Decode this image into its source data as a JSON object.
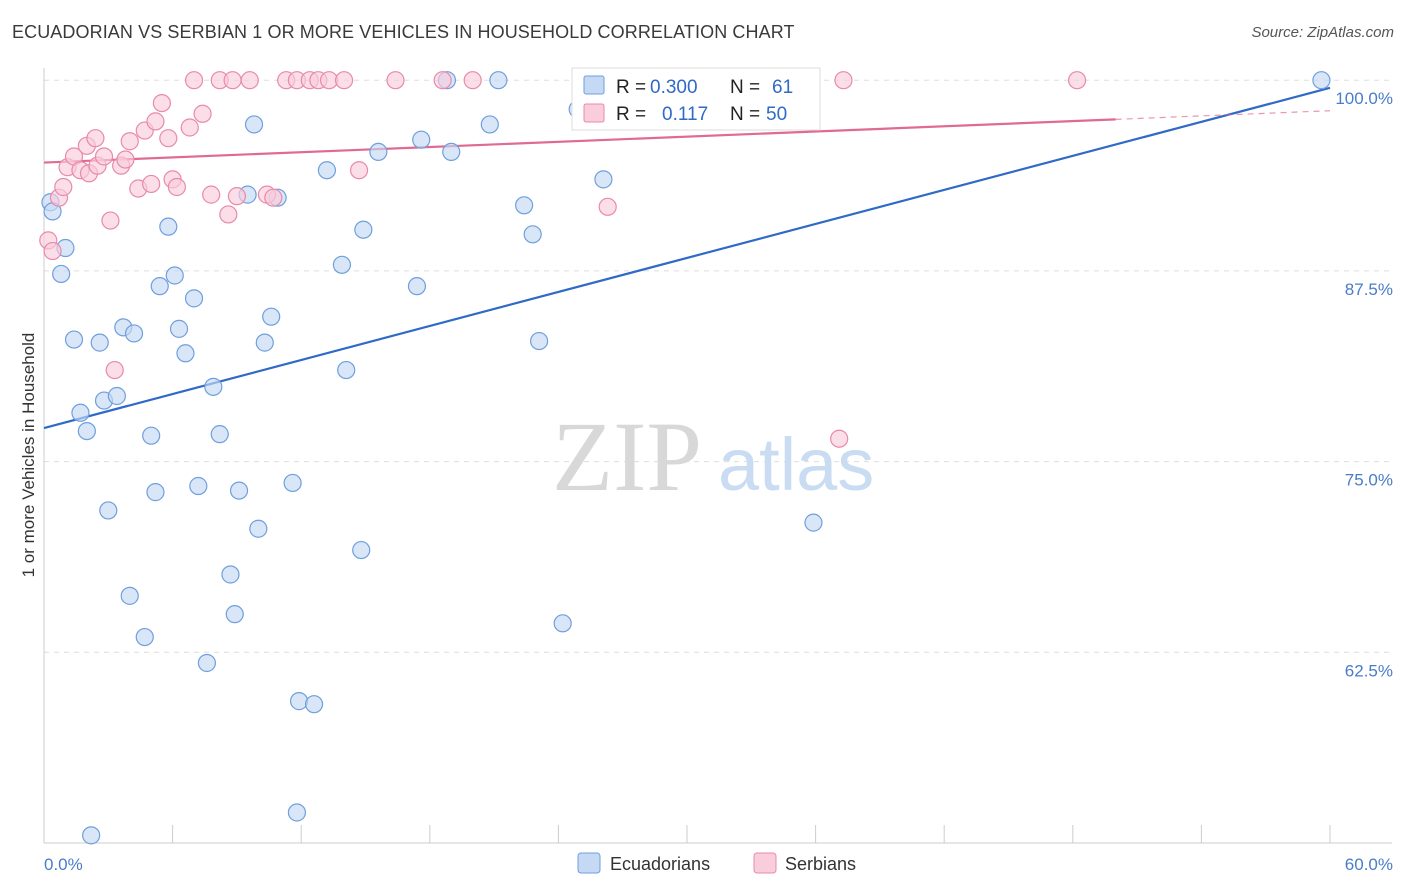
{
  "header": {
    "title": "ECUADORIAN VS SERBIAN 1 OR MORE VEHICLES IN HOUSEHOLD CORRELATION CHART",
    "source": "Source: ZipAtlas.com"
  },
  "watermark": {
    "zip": "ZIP",
    "atlas": "atlas"
  },
  "colors": {
    "blue_fill": "#c5d9f4",
    "blue_stroke": "#6f9fdc",
    "blue_line": "#2f6ac6",
    "pink_fill": "#f9cddc",
    "pink_stroke": "#e88aaa",
    "pink_line": "#e06a93",
    "grid": "#dddddd",
    "axis_text": "#4a7cc9"
  },
  "legend": {
    "rows": [
      {
        "r_label": "R =",
        "r_value": "0.300",
        "n_label": "N =",
        "n_value": "61",
        "series": "blue"
      },
      {
        "r_label": "R =",
        "r_value": "0.117",
        "n_label": "N =",
        "n_value": "50",
        "series": "pink"
      }
    ]
  },
  "bottom_legend": {
    "items": [
      {
        "label": "Ecuadorians",
        "series": "blue"
      },
      {
        "label": "Serbians",
        "series": "pink"
      }
    ]
  },
  "chart_data": {
    "type": "scatter",
    "title": "ECUADORIAN VS SERBIAN 1 OR MORE VEHICLES IN HOUSEHOLD CORRELATION CHART",
    "xlabel": "",
    "ylabel": "1 or more Vehicles in Household",
    "xlim": [
      0,
      60
    ],
    "ylim": [
      50,
      100.8
    ],
    "x_tick_labels": [
      {
        "value": 0,
        "label": "0.0%"
      },
      {
        "value": 60,
        "label": "60.0%"
      }
    ],
    "x_minor_ticks": [
      6,
      12,
      18,
      24,
      30,
      36,
      42,
      48,
      54,
      60
    ],
    "y_ticks": [
      {
        "value": 100,
        "label": "100.0%"
      },
      {
        "value": 87.5,
        "label": "87.5%"
      },
      {
        "value": 75,
        "label": "75.0%"
      },
      {
        "value": 62.5,
        "label": "62.5%"
      }
    ],
    "legend_position": "top-center",
    "series": [
      {
        "name": "Ecuadorians",
        "color_key": "blue",
        "trend": {
          "x0": 0,
          "y0": 77.2,
          "x1": 60,
          "y1": 99.5,
          "solid_to": 60
        },
        "points": [
          [
            0.3,
            92.0
          ],
          [
            0.4,
            91.4
          ],
          [
            1.0,
            89.0
          ],
          [
            0.8,
            87.3
          ],
          [
            1.4,
            83.0
          ],
          [
            1.7,
            78.2
          ],
          [
            2.0,
            77.0
          ],
          [
            2.6,
            82.8
          ],
          [
            2.8,
            79.0
          ],
          [
            3.4,
            79.3
          ],
          [
            3.0,
            71.8
          ],
          [
            3.7,
            83.8
          ],
          [
            4.2,
            83.4
          ],
          [
            4.0,
            66.2
          ],
          [
            4.7,
            63.5
          ],
          [
            5.0,
            76.7
          ],
          [
            5.2,
            73.0
          ],
          [
            5.4,
            86.5
          ],
          [
            5.8,
            90.4
          ],
          [
            6.1,
            87.2
          ],
          [
            6.3,
            83.7
          ],
          [
            6.6,
            82.1
          ],
          [
            7.0,
            85.7
          ],
          [
            7.2,
            73.4
          ],
          [
            7.6,
            61.8
          ],
          [
            7.9,
            79.9
          ],
          [
            8.2,
            76.8
          ],
          [
            8.7,
            67.6
          ],
          [
            8.9,
            65.0
          ],
          [
            9.1,
            73.1
          ],
          [
            9.5,
            92.5
          ],
          [
            9.8,
            97.1
          ],
          [
            10.0,
            70.6
          ],
          [
            10.3,
            82.8
          ],
          [
            10.6,
            84.5
          ],
          [
            10.9,
            92.3
          ],
          [
            11.6,
            73.6
          ],
          [
            11.8,
            52.0
          ],
          [
            11.9,
            59.3
          ],
          [
            12.6,
            59.1
          ],
          [
            13.2,
            94.1
          ],
          [
            13.9,
            87.9
          ],
          [
            14.1,
            81.0
          ],
          [
            14.8,
            69.2
          ],
          [
            14.9,
            90.2
          ],
          [
            15.6,
            95.3
          ],
          [
            17.4,
            86.5
          ],
          [
            17.6,
            96.1
          ],
          [
            18.8,
            100.0
          ],
          [
            19.0,
            95.3
          ],
          [
            20.8,
            97.1
          ],
          [
            21.2,
            100.0
          ],
          [
            22.4,
            91.8
          ],
          [
            22.8,
            89.9
          ],
          [
            23.1,
            82.9
          ],
          [
            24.2,
            64.4
          ],
          [
            24.9,
            98.1
          ],
          [
            26.1,
            93.5
          ],
          [
            35.9,
            71.0
          ],
          [
            59.6,
            100.0
          ],
          [
            2.2,
            50.5
          ]
        ]
      },
      {
        "name": "Serbians",
        "color_key": "pink",
        "trend": {
          "x0": 0,
          "y0": 94.6,
          "x1": 60,
          "y1": 98.0,
          "solid_to": 50
        },
        "points": [
          [
            0.2,
            89.5
          ],
          [
            0.4,
            88.8
          ],
          [
            0.7,
            92.3
          ],
          [
            0.9,
            93.0
          ],
          [
            1.1,
            94.3
          ],
          [
            1.4,
            95.0
          ],
          [
            1.7,
            94.1
          ],
          [
            2.0,
            95.7
          ],
          [
            2.1,
            93.9
          ],
          [
            2.4,
            96.2
          ],
          [
            2.5,
            94.4
          ],
          [
            2.8,
            95.0
          ],
          [
            3.1,
            90.8
          ],
          [
            3.3,
            81.0
          ],
          [
            3.6,
            94.4
          ],
          [
            3.8,
            94.8
          ],
          [
            4.0,
            96.0
          ],
          [
            4.4,
            92.9
          ],
          [
            4.7,
            96.7
          ],
          [
            5.0,
            93.2
          ],
          [
            5.2,
            97.3
          ],
          [
            5.5,
            98.5
          ],
          [
            5.8,
            96.2
          ],
          [
            6.0,
            93.5
          ],
          [
            6.2,
            93.0
          ],
          [
            6.8,
            96.9
          ],
          [
            7.0,
            100.0
          ],
          [
            7.4,
            97.8
          ],
          [
            7.8,
            92.5
          ],
          [
            8.2,
            100.0
          ],
          [
            8.6,
            91.2
          ],
          [
            8.8,
            100.0
          ],
          [
            9.0,
            92.4
          ],
          [
            9.6,
            100.0
          ],
          [
            10.4,
            92.5
          ],
          [
            10.7,
            92.3
          ],
          [
            11.3,
            100.0
          ],
          [
            11.8,
            100.0
          ],
          [
            12.4,
            100.0
          ],
          [
            12.8,
            100.0
          ],
          [
            13.3,
            100.0
          ],
          [
            14.0,
            100.0
          ],
          [
            14.7,
            94.1
          ],
          [
            16.4,
            100.0
          ],
          [
            18.6,
            100.0
          ],
          [
            20.0,
            100.0
          ],
          [
            26.3,
            91.7
          ],
          [
            37.1,
            76.5
          ],
          [
            37.3,
            100.0
          ],
          [
            48.2,
            100.0
          ]
        ]
      }
    ]
  }
}
